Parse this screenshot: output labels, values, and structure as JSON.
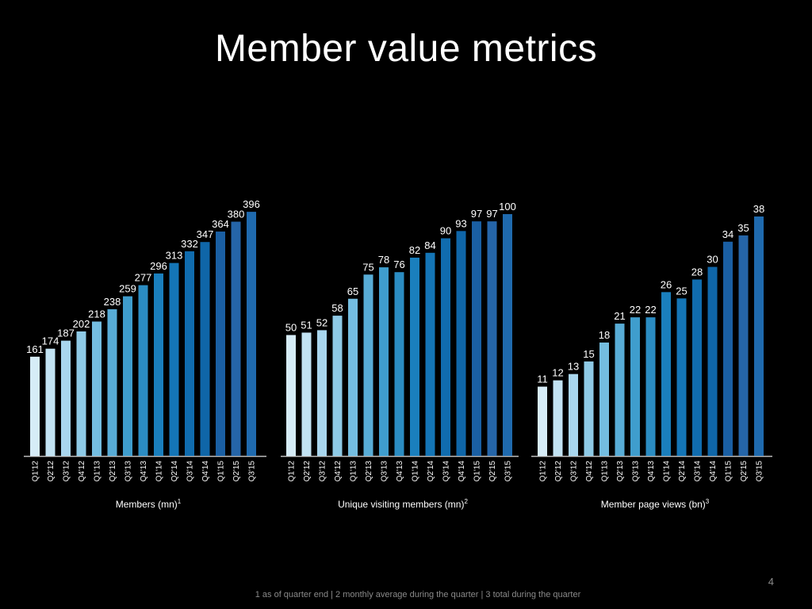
{
  "title": "Member value metrics",
  "footnote": "1 as of quarter end | 2 monthly average during the quarter | 3 total during the quarter",
  "page_number": "4",
  "colors": {
    "background": "#000000",
    "text": "#ffffff",
    "muted_text": "#8a8a8a",
    "axis_line": "#bfbfbf",
    "bar_gradient": [
      "#d6ecf7",
      "#c2e3f3",
      "#a9d6ee",
      "#8ecae6",
      "#74bde0",
      "#58acd6",
      "#3f9dcd",
      "#2b8cc2",
      "#1a7fbd",
      "#1475b6",
      "#106cae",
      "#0f66a8",
      "#1a5fa3",
      "#2565a8",
      "#1f6aae"
    ]
  },
  "chart_data": [
    {
      "type": "bar",
      "title": "",
      "xlabel": "Members (mn)",
      "xlabel_sup": "1",
      "ylabel": "",
      "categories": [
        "Q1'12",
        "Q2'12",
        "Q3'12",
        "Q4'12",
        "Q1'13",
        "Q2'13",
        "Q3'13",
        "Q4'13",
        "Q1'14",
        "Q2'14",
        "Q3'14",
        "Q4'14",
        "Q1'15",
        "Q2'15",
        "Q3'15"
      ],
      "values": [
        161,
        174,
        187,
        202,
        218,
        238,
        259,
        277,
        296,
        313,
        332,
        347,
        364,
        380,
        396
      ],
      "data_labels": [
        "161",
        "174",
        "187",
        "202",
        "218",
        "238",
        "259",
        "277",
        "296",
        "313",
        "332",
        "347",
        "364",
        "380",
        "396"
      ],
      "ylim": [
        0,
        400
      ],
      "grid": false,
      "legend": "none"
    },
    {
      "type": "bar",
      "title": "",
      "xlabel": "Unique visiting members (mn)",
      "xlabel_sup": "2",
      "ylabel": "",
      "categories": [
        "Q1'12",
        "Q2'12",
        "Q3'12",
        "Q4'12",
        "Q1'13",
        "Q2'13",
        "Q3'13",
        "Q4'13",
        "Q1'14",
        "Q2'14",
        "Q3'14",
        "Q4'14",
        "Q1'15",
        "Q2'15",
        "Q3'15"
      ],
      "values": [
        50,
        51,
        52,
        58,
        65,
        75,
        78,
        76,
        82,
        84,
        90,
        93,
        97,
        97,
        100
      ],
      "data_labels": [
        "50",
        "51",
        "52",
        "58",
        "65",
        "75",
        "78",
        "76",
        "82",
        "84",
        "90",
        "93",
        "97",
        "97",
        "100"
      ],
      "ylim": [
        0,
        100
      ],
      "grid": false,
      "legend": "none"
    },
    {
      "type": "bar",
      "title": "",
      "xlabel": "Member page views (bn)",
      "xlabel_sup": "3",
      "ylabel": "",
      "categories": [
        "Q1'12",
        "Q2'12",
        "Q3'12",
        "Q4'12",
        "Q1'13",
        "Q2'13",
        "Q3'13",
        "Q4'13",
        "Q1'14",
        "Q2'14",
        "Q3'14",
        "Q4'14",
        "Q1'15",
        "Q2'15",
        "Q3'15"
      ],
      "values": [
        11,
        12,
        13,
        15,
        18,
        21,
        22,
        22,
        26,
        25,
        28,
        30,
        34,
        35,
        38
      ],
      "data_labels": [
        "11",
        "12",
        "13",
        "15",
        "18",
        "21",
        "22",
        "22",
        "26",
        "25",
        "28",
        "30",
        "34",
        "35",
        "38"
      ],
      "ylim": [
        0,
        38
      ],
      "grid": false,
      "legend": "none"
    }
  ]
}
